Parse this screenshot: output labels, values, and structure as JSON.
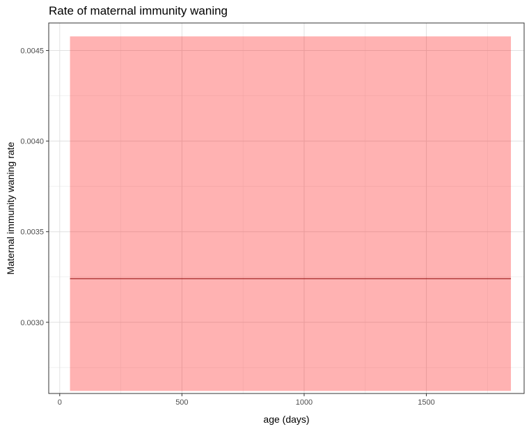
{
  "chart_data": {
    "type": "line",
    "title": "Rate of maternal immunity waning",
    "xlabel": "age (days)",
    "ylabel": "Maternal immunity waning rate",
    "xlim": [
      -45,
      1900
    ],
    "ylim": [
      0.002607,
      0.004652
    ],
    "x_ticks": [
      0,
      500,
      1000,
      1500
    ],
    "x_tick_labels": [
      "0",
      "500",
      "1000",
      "1500"
    ],
    "y_ticks": [
      0.003,
      0.0035,
      0.004,
      0.0045
    ],
    "y_tick_labels": [
      "0.0030",
      "0.0035",
      "0.0040",
      "0.0045"
    ],
    "grid": true,
    "series": [
      {
        "x": [
          42,
          1846
        ],
        "y": [
          0.003241,
          0.003241
        ],
        "lower": [
          0.002621,
          0.002621
        ],
        "upper": [
          0.004578,
          0.004578
        ],
        "line_color": "#8b0000",
        "band_color": "#ff0000",
        "band_opacity": 0.3
      }
    ]
  }
}
